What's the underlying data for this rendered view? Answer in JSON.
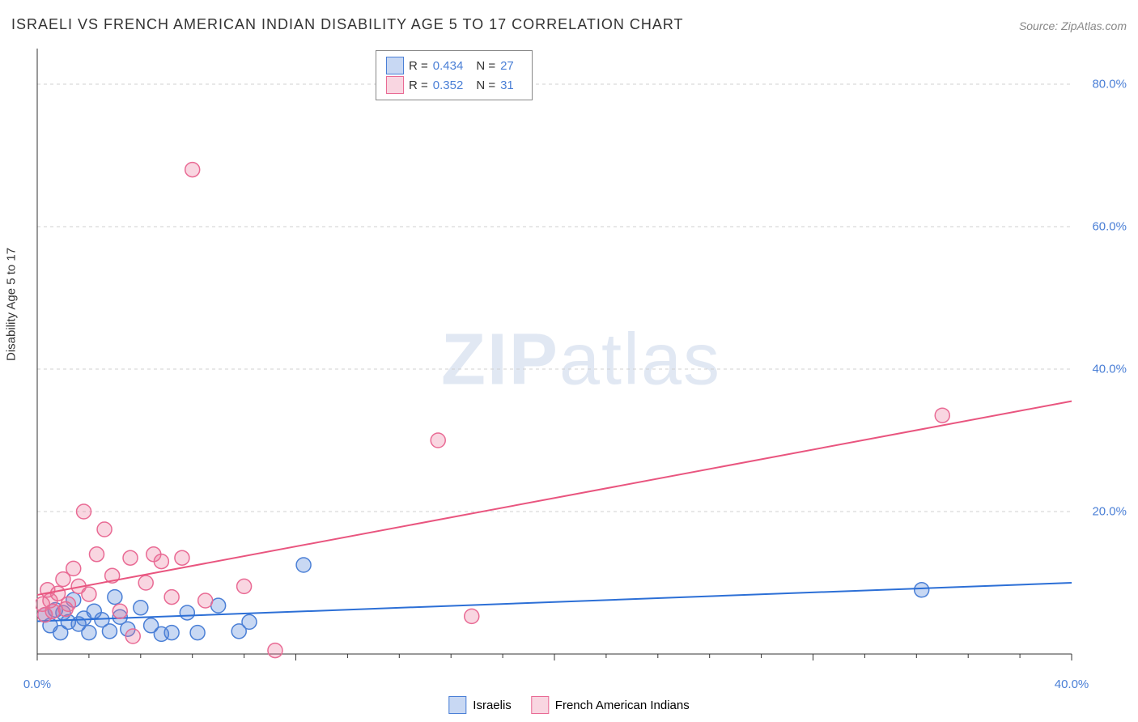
{
  "title": "ISRAELI VS FRENCH AMERICAN INDIAN DISABILITY AGE 5 TO 17 CORRELATION CHART",
  "source": "Source: ZipAtlas.com",
  "y_axis_label": "Disability Age 5 to 17",
  "watermark": {
    "bold": "ZIP",
    "rest": "atlas"
  },
  "chart": {
    "type": "scatter",
    "xlim": [
      0,
      40
    ],
    "ylim": [
      0,
      85
    ],
    "x_ticks": [
      0,
      10,
      20,
      30,
      40
    ],
    "x_tick_labels": [
      "0.0%",
      "",
      "",
      "",
      "40.0%"
    ],
    "y_ticks": [
      20,
      40,
      60,
      80
    ],
    "y_tick_labels": [
      "20.0%",
      "40.0%",
      "60.0%",
      "80.0%"
    ],
    "background_color": "#ffffff",
    "grid_color": "#d0d0d0",
    "axis_color": "#333333",
    "tick_label_color": "#4a7fd6",
    "marker_radius": 9,
    "marker_stroke_width": 1.5,
    "line_width": 2,
    "series": [
      {
        "name": "Israelis",
        "fill": "rgba(74,127,214,0.30)",
        "stroke": "#4a7fd6",
        "line_color": "#2c6fd6",
        "R": "0.434",
        "N": "27",
        "points": [
          [
            0.3,
            5.5
          ],
          [
            0.5,
            4.0
          ],
          [
            0.7,
            6.2
          ],
          [
            0.9,
            3.0
          ],
          [
            1.0,
            5.8
          ],
          [
            1.2,
            4.5
          ],
          [
            1.4,
            7.6
          ],
          [
            1.6,
            4.2
          ],
          [
            1.8,
            5.0
          ],
          [
            2.0,
            3.0
          ],
          [
            2.2,
            6.0
          ],
          [
            2.5,
            4.8
          ],
          [
            2.8,
            3.2
          ],
          [
            3.0,
            8.0
          ],
          [
            3.2,
            5.2
          ],
          [
            3.5,
            3.5
          ],
          [
            4.0,
            6.5
          ],
          [
            4.4,
            4.0
          ],
          [
            4.8,
            2.8
          ],
          [
            5.2,
            3.0
          ],
          [
            5.8,
            5.8
          ],
          [
            6.2,
            3.0
          ],
          [
            7.0,
            6.8
          ],
          [
            7.8,
            3.2
          ],
          [
            8.2,
            4.5
          ],
          [
            10.3,
            12.5
          ],
          [
            34.2,
            9.0
          ]
        ],
        "trend": {
          "y_at_x0": 4.6,
          "y_at_x40": 10.0
        }
      },
      {
        "name": "French American Indians",
        "fill": "rgba(235,120,155,0.30)",
        "stroke": "#e96a94",
        "line_color": "#e9557f",
        "R": "0.352",
        "N": "31",
        "points": [
          [
            0.2,
            7.0
          ],
          [
            0.3,
            5.5
          ],
          [
            0.4,
            9.0
          ],
          [
            0.5,
            7.5
          ],
          [
            0.6,
            6.0
          ],
          [
            0.8,
            8.5
          ],
          [
            1.0,
            10.5
          ],
          [
            1.2,
            7.0
          ],
          [
            1.4,
            12.0
          ],
          [
            1.6,
            9.5
          ],
          [
            1.8,
            20.0
          ],
          [
            2.0,
            8.4
          ],
          [
            2.3,
            14.0
          ],
          [
            2.6,
            17.5
          ],
          [
            2.9,
            11.0
          ],
          [
            3.2,
            6.0
          ],
          [
            3.6,
            13.5
          ],
          [
            3.7,
            2.5
          ],
          [
            4.2,
            10.0
          ],
          [
            4.5,
            14.0
          ],
          [
            4.8,
            13.0
          ],
          [
            5.2,
            8.0
          ],
          [
            5.6,
            13.5
          ],
          [
            6.0,
            68.0
          ],
          [
            6.5,
            7.5
          ],
          [
            8.0,
            9.5
          ],
          [
            9.2,
            0.5
          ],
          [
            15.5,
            30.0
          ],
          [
            16.8,
            5.3
          ],
          [
            35.0,
            33.5
          ],
          [
            1.1,
            6.3
          ]
        ],
        "trend": {
          "y_at_x0": 8.3,
          "y_at_x40": 35.5
        }
      }
    ]
  },
  "legend_top": {
    "R_label": "R =",
    "N_label": "N ="
  },
  "bottom_legend": {
    "items": [
      "Israelis",
      "French American Indians"
    ]
  }
}
